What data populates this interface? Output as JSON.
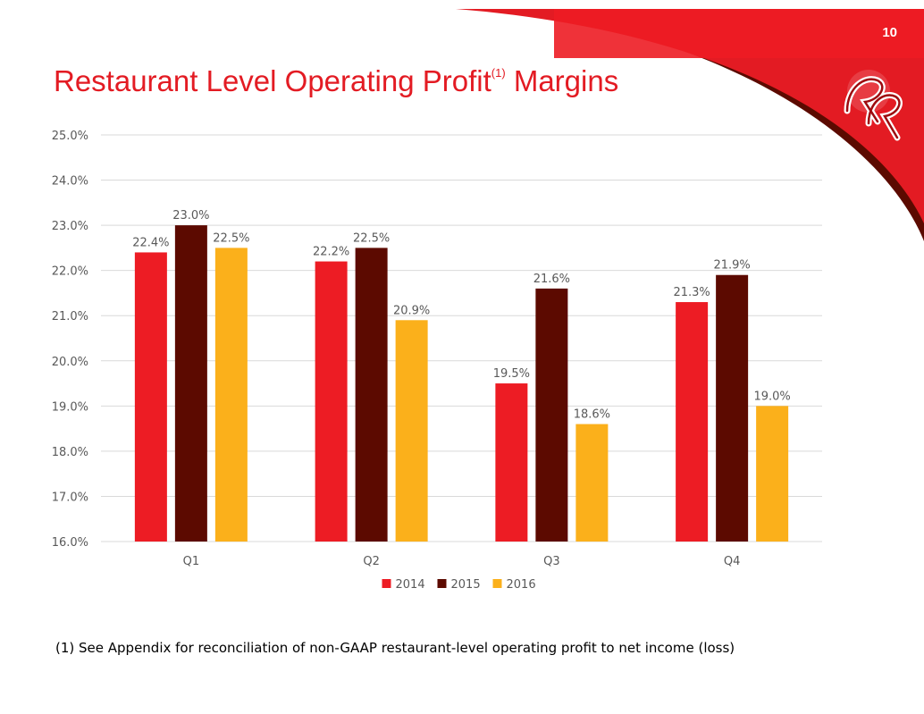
{
  "page": {
    "number": "10",
    "title_main": "Restaurant Level Operating Profit",
    "title_footnote_marker": "(1)",
    "title_suffix": "Margins",
    "footnote": "(1) See Appendix for reconciliation of non-GAAP restaurant-level operating profit to net income (loss)",
    "logo_icon": "red-robin-rr-logo-icon"
  },
  "colors": {
    "brand_red": "#e31b23",
    "dark_red": "#5c0a00",
    "gold": "#fbb01b"
  },
  "chart_data": {
    "type": "bar",
    "title": "",
    "xlabel": "",
    "ylabel": "",
    "categories": [
      "Q1",
      "Q2",
      "Q3",
      "Q4"
    ],
    "series": [
      {
        "name": "2014",
        "color": "#ed1c24",
        "values": [
          22.4,
          22.2,
          19.5,
          21.3
        ],
        "labels": [
          "22.4%",
          "22.2%",
          "19.5%",
          "21.3%"
        ]
      },
      {
        "name": "2015",
        "color": "#5c0a00",
        "values": [
          23.0,
          22.5,
          21.6,
          21.9
        ],
        "labels": [
          "23.0%",
          "22.5%",
          "21.6%",
          "21.9%"
        ]
      },
      {
        "name": "2016",
        "color": "#fbb01b",
        "values": [
          22.5,
          20.9,
          18.6,
          19.0
        ],
        "labels": [
          "22.5%",
          "20.9%",
          "18.6%",
          "19.0%"
        ]
      }
    ],
    "ylim": [
      16.0,
      25.0
    ],
    "yticks": [
      "16.0%",
      "17.0%",
      "18.0%",
      "19.0%",
      "20.0%",
      "21.0%",
      "22.0%",
      "23.0%",
      "24.0%",
      "25.0%"
    ],
    "ytick_values": [
      16,
      17,
      18,
      19,
      20,
      21,
      22,
      23,
      24,
      25
    ],
    "grid": true,
    "legend_position": "bottom"
  }
}
